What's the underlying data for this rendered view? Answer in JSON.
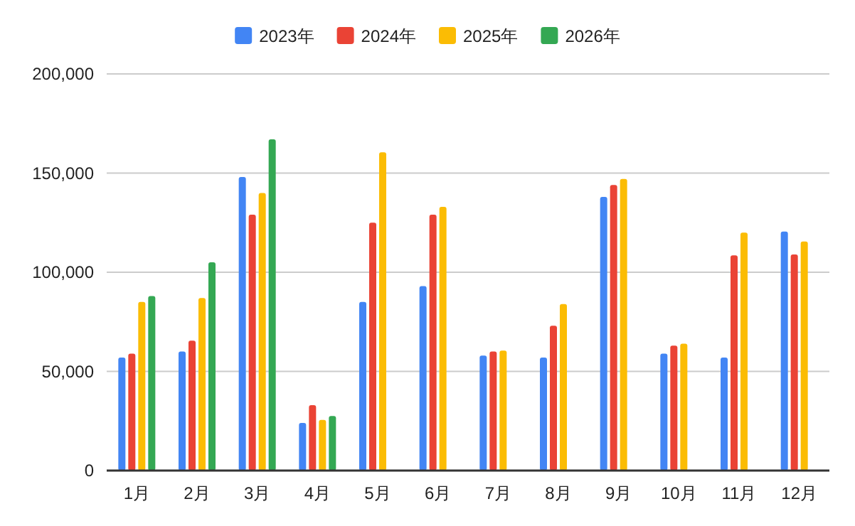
{
  "chart_data": {
    "type": "bar",
    "categories": [
      "1月",
      "2月",
      "3月",
      "4月",
      "5月",
      "6月",
      "7月",
      "8月",
      "9月",
      "10月",
      "11月",
      "12月"
    ],
    "series": [
      {
        "name": "2023年",
        "color": "#4285f4",
        "values": [
          57000,
          60000,
          148000,
          24000,
          85000,
          93000,
          58000,
          57000,
          138000,
          59000,
          57000,
          120500
        ]
      },
      {
        "name": "2024年",
        "color": "#ea4335",
        "values": [
          59000,
          65500,
          129000,
          33000,
          125000,
          129000,
          60000,
          73000,
          144000,
          63000,
          108500,
          109000
        ]
      },
      {
        "name": "2025年",
        "color": "#fbbc04",
        "values": [
          85000,
          87000,
          140000,
          25500,
          160500,
          133000,
          60500,
          84000,
          147000,
          64000,
          120000,
          115500
        ]
      },
      {
        "name": "2026年",
        "color": "#34a853",
        "values": [
          88000,
          105000,
          167000,
          27500,
          null,
          null,
          null,
          null,
          null,
          null,
          null,
          null
        ]
      }
    ],
    "ylim": [
      0,
      200000
    ],
    "yticks": [
      {
        "value": 0,
        "label": "0"
      },
      {
        "value": 50000,
        "label": "50,000"
      },
      {
        "value": 100000,
        "label": "100,000"
      },
      {
        "value": 150000,
        "label": "150,000"
      },
      {
        "value": 200000,
        "label": "200,000"
      }
    ],
    "grid": "y",
    "legend": "top"
  }
}
